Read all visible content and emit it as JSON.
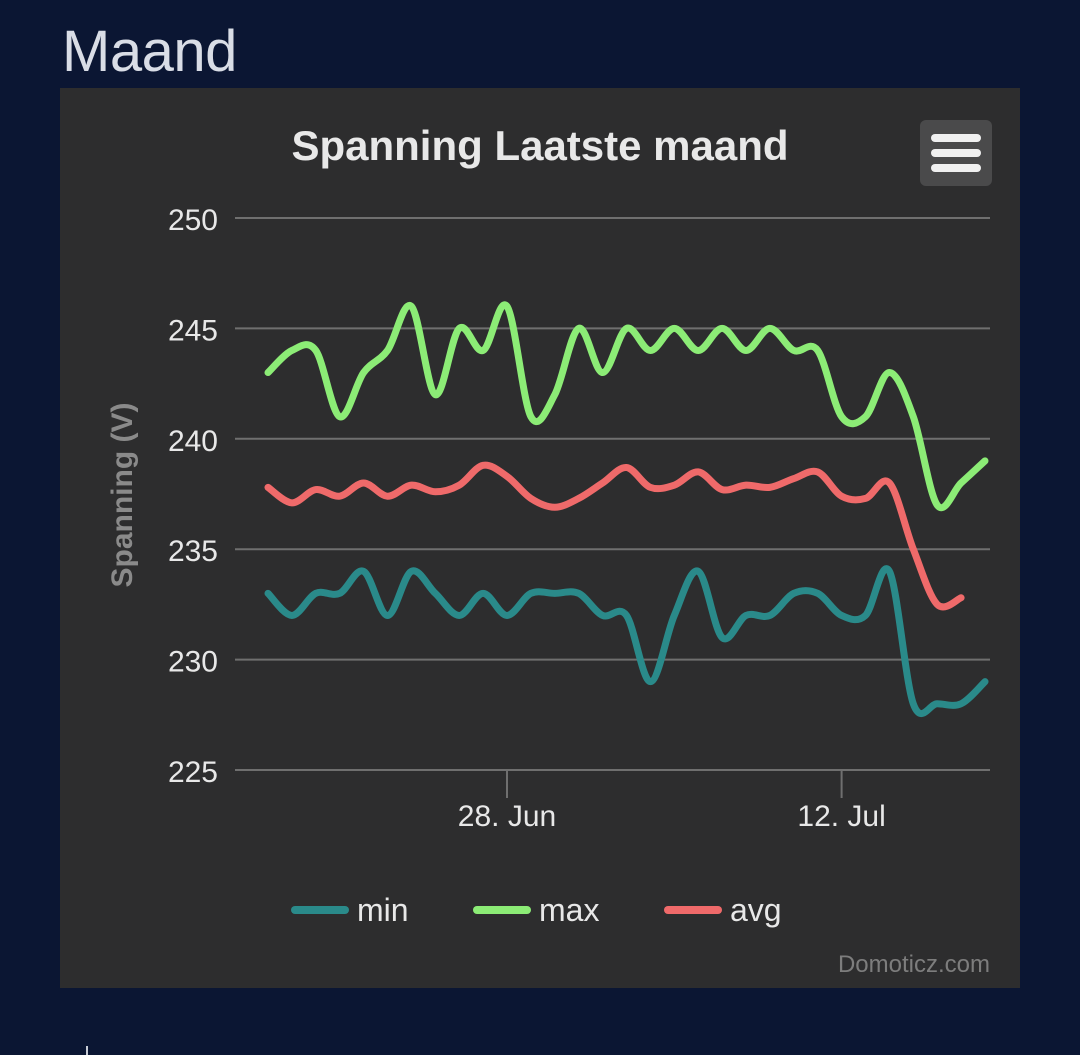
{
  "page": {
    "heading": "Maand"
  },
  "menu": {
    "icon": "hamburger-menu-icon"
  },
  "credits": "Domoticz.com",
  "colors": {
    "min": "#2a8a8a",
    "max": "#8cec76",
    "avg": "#ef6a6a",
    "grid": "#6f6f6f",
    "text": "#e8e8e8"
  },
  "chart_data": {
    "type": "line",
    "title": "Spanning Laatste maand",
    "xlabel": "",
    "ylabel": "Spanning (V)",
    "ylim": [
      225,
      250
    ],
    "yticks": [
      250,
      245,
      240,
      235,
      230,
      225
    ],
    "xlim": [
      0,
      30.5
    ],
    "xticks": [
      {
        "pos": 10,
        "label": "28. Jun"
      },
      {
        "pos": 24,
        "label": "12. Jul"
      }
    ],
    "series": [
      {
        "name": "min",
        "x": [
          0,
          1,
          2,
          3,
          4,
          5,
          6,
          7,
          8,
          9,
          10,
          11,
          12,
          13,
          14,
          15,
          16,
          17,
          18,
          19,
          20,
          21,
          22,
          23,
          24,
          25,
          26,
          27,
          28,
          29,
          30
        ],
        "values": [
          233,
          232,
          233,
          233,
          234,
          232,
          234,
          233,
          232,
          233,
          232,
          233,
          233,
          233,
          232,
          232,
          229,
          232,
          234,
          231,
          232,
          232,
          233,
          233,
          232,
          232,
          234,
          228,
          228,
          228,
          229
        ]
      },
      {
        "name": "max",
        "x": [
          0,
          1,
          2,
          3,
          4,
          5,
          6,
          7,
          8,
          9,
          10,
          11,
          12,
          13,
          14,
          15,
          16,
          17,
          18,
          19,
          20,
          21,
          22,
          23,
          24,
          25,
          26,
          27,
          28,
          29,
          30
        ],
        "values": [
          243,
          244,
          244,
          241,
          243,
          244,
          246,
          242,
          245,
          244,
          246,
          241,
          242,
          245,
          243,
          245,
          244,
          245,
          244,
          245,
          244,
          245,
          244,
          244,
          241,
          241,
          243,
          241,
          237,
          238,
          239
        ]
      },
      {
        "name": "avg",
        "x": [
          0,
          1,
          2,
          3,
          4,
          5,
          6,
          7,
          8,
          9,
          10,
          11,
          12,
          13,
          14,
          15,
          16,
          17,
          18,
          19,
          20,
          21,
          22,
          23,
          24,
          25,
          26,
          27,
          28,
          29
        ],
        "values": [
          237.8,
          237.1,
          237.7,
          237.4,
          238,
          237.4,
          237.9,
          237.6,
          237.9,
          238.8,
          238.3,
          237.3,
          236.9,
          237.3,
          238,
          238.7,
          237.8,
          237.9,
          238.5,
          237.7,
          237.9,
          237.8,
          238.2,
          238.5,
          237.4,
          237.3,
          238,
          235,
          232.5,
          232.8
        ]
      }
    ],
    "legend": [
      "min",
      "max",
      "avg"
    ],
    "legend_position": "bottom-center"
  }
}
